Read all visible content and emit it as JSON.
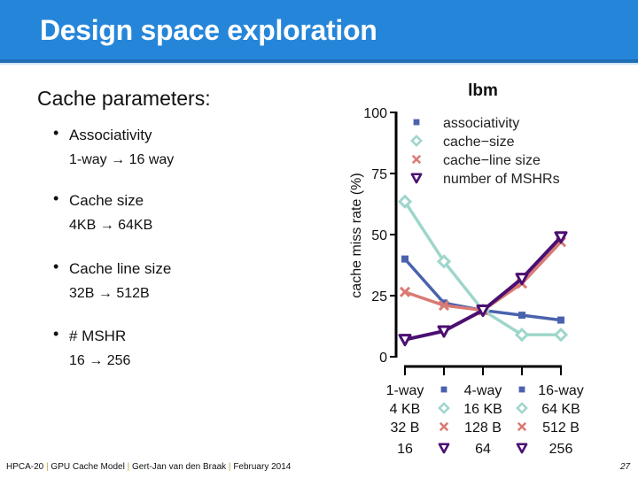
{
  "slide": {
    "title": "Design space exploration",
    "intro": "Cache parameters:",
    "bullets": [
      {
        "name": "Associativity",
        "range": "1-way → 16 way"
      },
      {
        "name": "Cache size",
        "range": "4KB → 64KB"
      },
      {
        "name": "Cache line size",
        "range": "32B → 512B"
      },
      {
        "name": "# MSHR",
        "range": "16 → 256"
      }
    ],
    "footer": {
      "parts": [
        "HPCA-20",
        "GPU Cache Model",
        "Gert-Jan van den Braak",
        "February 2014"
      ],
      "separator": "|"
    },
    "page_number": "27"
  },
  "colors": {
    "header_bg": "#2586d9",
    "associativity": "#4a62ae",
    "cache_size": "#9fd6cc",
    "cache_line_size": "#d97b73",
    "mshr": "#4b0f72"
  },
  "chart_data": {
    "type": "line",
    "title": "lbm",
    "xlabel": "",
    "ylabel": "cache miss rate (%)",
    "ylim": [
      0,
      100
    ],
    "yticks": [
      0,
      25,
      50,
      75,
      100
    ],
    "grid": false,
    "legend_position": "top-right inside",
    "x": [
      0,
      1,
      2,
      3,
      4
    ],
    "xtick_labels": [
      {
        "row": "associativity",
        "labels": [
          "1-way",
          "4-way",
          "16-way"
        ],
        "positions": [
          0,
          2,
          4
        ]
      },
      {
        "row": "cache-size",
        "labels": [
          "4 KB",
          "16 KB",
          "64 KB"
        ],
        "positions": [
          0,
          2,
          4
        ]
      },
      {
        "row": "cache-line size",
        "labels": [
          "32 B",
          "128 B",
          "512 B"
        ],
        "positions": [
          0,
          2,
          4
        ]
      },
      {
        "row": "number of MSHRs",
        "labels": [
          "16",
          "64",
          "256"
        ],
        "positions": [
          0,
          2,
          4
        ]
      }
    ],
    "series": [
      {
        "name": "associativity",
        "marker": "square",
        "color": "#4a62ae",
        "values": [
          40,
          22,
          19,
          17,
          15
        ]
      },
      {
        "name": "cache−size",
        "marker": "diamond",
        "color": "#9fd6cc",
        "values": [
          63.5,
          39,
          19,
          9,
          9
        ]
      },
      {
        "name": "cache−line size",
        "marker": "x",
        "color": "#d97b73",
        "values": [
          26.5,
          21,
          19,
          30,
          47
        ]
      },
      {
        "name": "number of MSHRs",
        "marker": "triangle-down",
        "color": "#4b0f72",
        "values": [
          7,
          10.5,
          19,
          32,
          49
        ]
      }
    ]
  }
}
